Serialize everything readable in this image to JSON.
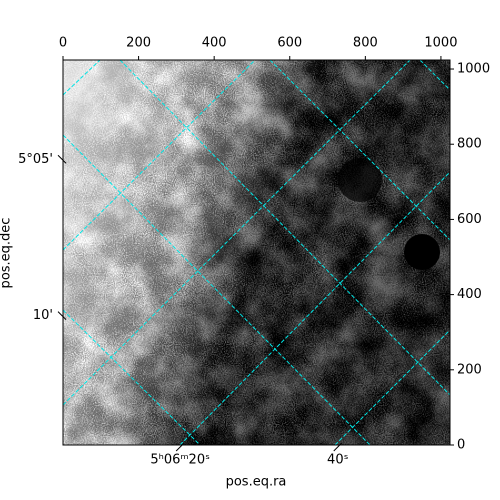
{
  "chart_data": {
    "type": "image",
    "xlabel": "pos.eq.ra",
    "ylabel": "pos.eq.dec",
    "xlim": [
      0,
      1024
    ],
    "ylim": [
      0,
      1024
    ],
    "xticks": [
      0,
      200,
      400,
      600,
      800,
      1000
    ],
    "yticks": [
      0,
      200,
      400,
      600,
      800,
      1000
    ],
    "ra_ticks": [
      {
        "value": 310,
        "label": "5ʰ06ᵐ20ˢ"
      },
      {
        "value": 727,
        "label": "40ˢ"
      }
    ],
    "dec_ticks": [
      {
        "value": 760,
        "label": "5°05'"
      },
      {
        "value": 344,
        "label": "10'"
      }
    ],
    "grid_color": "#00e5e5"
  }
}
